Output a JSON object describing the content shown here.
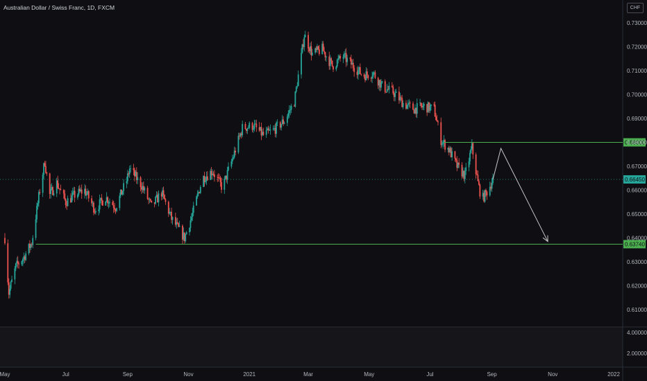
{
  "title": "Australian Dollar / Swiss Franc, 1D, FXCM",
  "currency": "CHF",
  "colors": {
    "background": "#0f0f13",
    "up": "#26a69a",
    "down": "#ef5350",
    "level": "#4caf50",
    "projection": "#c8c8c8",
    "axis_text": "#b2b5be"
  },
  "chart_data": {
    "type": "candlestick",
    "title": "Australian Dollar / Swiss Franc, 1D, FXCM",
    "y_ticks": [
      "0.73000",
      "0.72000",
      "0.71000",
      "0.70000",
      "0.69000",
      "0.68000",
      "0.67000",
      "0.66000",
      "0.65000",
      "0.64000",
      "0.63000",
      "0.62000",
      "0.61000"
    ],
    "ylim": [
      0.6015,
      0.7355
    ],
    "x_ticks": [
      "May",
      "Jul",
      "Sep",
      "Nov",
      "2021",
      "Mar",
      "May",
      "Jul",
      "Sep",
      "Nov",
      "2022"
    ],
    "xlim": [
      "2020-05-01",
      "2022-01-01"
    ],
    "indicator_ticks": [
      "4.00000",
      "2.00000"
    ],
    "grid": false,
    "horizontal_levels": [
      {
        "price": 0.68,
        "label": "0.68000"
      },
      {
        "price": 0.6374,
        "label": "0.63740"
      }
    ],
    "current_price": {
      "price": 0.6645,
      "label": "0.66450"
    },
    "price_path": [
      {
        "date": "2020-05-01",
        "price": 0.64
      },
      {
        "date": "2020-05-05",
        "price": 0.617
      },
      {
        "date": "2020-05-12",
        "price": 0.628
      },
      {
        "date": "2020-05-20",
        "price": 0.632
      },
      {
        "date": "2020-05-28",
        "price": 0.638
      },
      {
        "date": "2020-06-05",
        "price": 0.66
      },
      {
        "date": "2020-06-10",
        "price": 0.672
      },
      {
        "date": "2020-06-15",
        "price": 0.658
      },
      {
        "date": "2020-06-22",
        "price": 0.663
      },
      {
        "date": "2020-07-01",
        "price": 0.655
      },
      {
        "date": "2020-07-10",
        "price": 0.658
      },
      {
        "date": "2020-07-20",
        "price": 0.66
      },
      {
        "date": "2020-07-30",
        "price": 0.652
      },
      {
        "date": "2020-08-10",
        "price": 0.657
      },
      {
        "date": "2020-08-20",
        "price": 0.653
      },
      {
        "date": "2020-08-31",
        "price": 0.664
      },
      {
        "date": "2020-09-03",
        "price": 0.669
      },
      {
        "date": "2020-09-15",
        "price": 0.662
      },
      {
        "date": "2020-09-25",
        "price": 0.653
      },
      {
        "date": "2020-10-05",
        "price": 0.659
      },
      {
        "date": "2020-10-15",
        "price": 0.648
      },
      {
        "date": "2020-10-28",
        "price": 0.64
      },
      {
        "date": "2020-11-05",
        "price": 0.65
      },
      {
        "date": "2020-11-15",
        "price": 0.665
      },
      {
        "date": "2020-11-25",
        "price": 0.668
      },
      {
        "date": "2020-12-05",
        "price": 0.661
      },
      {
        "date": "2020-12-15",
        "price": 0.673
      },
      {
        "date": "2020-12-25",
        "price": 0.686
      },
      {
        "date": "2021-01-05",
        "price": 0.687
      },
      {
        "date": "2021-01-15",
        "price": 0.683
      },
      {
        "date": "2021-01-25",
        "price": 0.685
      },
      {
        "date": "2021-02-05",
        "price": 0.689
      },
      {
        "date": "2021-02-15",
        "price": 0.697
      },
      {
        "date": "2021-02-22",
        "price": 0.716
      },
      {
        "date": "2021-02-25",
        "price": 0.725
      },
      {
        "date": "2021-03-05",
        "price": 0.717
      },
      {
        "date": "2021-03-15",
        "price": 0.719
      },
      {
        "date": "2021-03-25",
        "price": 0.712
      },
      {
        "date": "2021-04-05",
        "price": 0.716
      },
      {
        "date": "2021-04-15",
        "price": 0.712
      },
      {
        "date": "2021-04-25",
        "price": 0.708
      },
      {
        "date": "2021-05-05",
        "price": 0.709
      },
      {
        "date": "2021-05-15",
        "price": 0.703
      },
      {
        "date": "2021-05-25",
        "price": 0.701
      },
      {
        "date": "2021-06-05",
        "price": 0.696
      },
      {
        "date": "2021-06-15",
        "price": 0.694
      },
      {
        "date": "2021-06-25",
        "price": 0.695
      },
      {
        "date": "2021-07-05",
        "price": 0.694
      },
      {
        "date": "2021-07-12",
        "price": 0.681
      },
      {
        "date": "2021-07-20",
        "price": 0.677
      },
      {
        "date": "2021-07-28",
        "price": 0.67
      },
      {
        "date": "2021-08-05",
        "price": 0.666
      },
      {
        "date": "2021-08-12",
        "price": 0.678
      },
      {
        "date": "2021-08-18",
        "price": 0.663
      },
      {
        "date": "2021-08-22",
        "price": 0.656
      },
      {
        "date": "2021-08-28",
        "price": 0.66
      },
      {
        "date": "2021-09-02",
        "price": 0.6645
      }
    ],
    "projection_path": [
      {
        "date": "2021-09-02",
        "price": 0.6645
      },
      {
        "date": "2021-09-10",
        "price": 0.6775
      },
      {
        "date": "2021-10-27",
        "price": 0.6385
      }
    ]
  }
}
